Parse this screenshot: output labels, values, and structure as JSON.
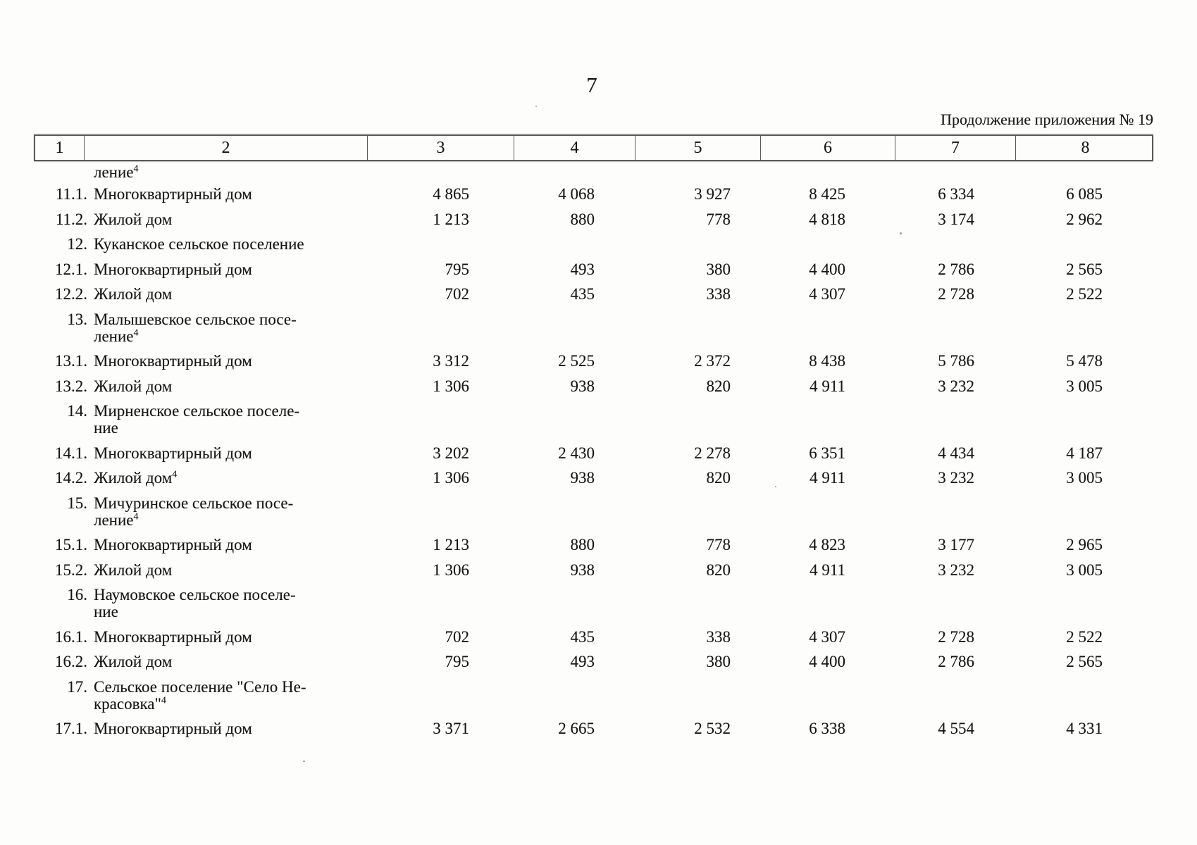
{
  "page": {
    "number": "7",
    "caption": "Продолжение приложения № 19"
  },
  "table": {
    "columns": [
      "1",
      "2",
      "3",
      "4",
      "5",
      "6",
      "7",
      "8"
    ],
    "rows": [
      {
        "type": "continuation",
        "num": "",
        "label": "ление",
        "sup": "4",
        "values": []
      },
      {
        "type": "data",
        "num": "11.1.",
        "label": "Многоквартирный дом",
        "values": [
          "4 865",
          "4 068",
          "3 927",
          "8 425",
          "6 334",
          "6 085"
        ]
      },
      {
        "type": "data",
        "num": "11.2.",
        "label": "Жилой дом",
        "values": [
          "1 213",
          "880",
          "778",
          "4 818",
          "3 174",
          "2 962"
        ]
      },
      {
        "type": "section",
        "num": "12.",
        "label": "Куканское сельское поселение",
        "values": []
      },
      {
        "type": "data",
        "num": "12.1.",
        "label": "Многоквартирный дом",
        "values": [
          "795",
          "493",
          "380",
          "4 400",
          "2 786",
          "2 565"
        ]
      },
      {
        "type": "data",
        "num": "12.2.",
        "label": "Жилой дом",
        "values": [
          "702",
          "435",
          "338",
          "4 307",
          "2 728",
          "2 522"
        ]
      },
      {
        "type": "section2",
        "num": "13.",
        "label": "Малышевское сельское посе-",
        "label2": "ление",
        "sup2": "4",
        "values": []
      },
      {
        "type": "data",
        "num": "13.1.",
        "label": "Многоквартирный дом",
        "values": [
          "3 312",
          "2 525",
          "2 372",
          "8 438",
          "5 786",
          "5 478"
        ]
      },
      {
        "type": "data",
        "num": "13.2.",
        "label": "Жилой дом",
        "values": [
          "1 306",
          "938",
          "820",
          "4 911",
          "3 232",
          "3 005"
        ]
      },
      {
        "type": "section2",
        "num": "14.",
        "label": "Мирненское сельское поселе-",
        "label2": "ние",
        "values": []
      },
      {
        "type": "data",
        "num": "14.1.",
        "label": "Многоквартирный дом",
        "values": [
          "3 202",
          "2 430",
          "2 278",
          "6 351",
          "4 434",
          "4 187"
        ]
      },
      {
        "type": "data",
        "num": "14.2.",
        "label": "Жилой дом",
        "sup": "4",
        "values": [
          "1 306",
          "938",
          "820",
          "4 911",
          "3 232",
          "3 005"
        ]
      },
      {
        "type": "section2",
        "num": "15.",
        "label": "Мичуринское сельское посе-",
        "label2": "ление",
        "sup2": "4",
        "values": []
      },
      {
        "type": "data",
        "num": "15.1.",
        "label": "Многоквартирный дом",
        "values": [
          "1 213",
          "880",
          "778",
          "4 823",
          "3 177",
          "2 965"
        ]
      },
      {
        "type": "data",
        "num": "15.2.",
        "label": "Жилой дом",
        "values": [
          "1 306",
          "938",
          "820",
          "4 911",
          "3 232",
          "3 005"
        ]
      },
      {
        "type": "section2",
        "num": "16.",
        "label": "Наумовское сельское поселе-",
        "label2": "ние",
        "values": []
      },
      {
        "type": "data",
        "num": "16.1.",
        "label": "Многоквартирный дом",
        "values": [
          "702",
          "435",
          "338",
          "4 307",
          "2 728",
          "2 522"
        ]
      },
      {
        "type": "data",
        "num": "16.2.",
        "label": "Жилой дом",
        "values": [
          "795",
          "493",
          "380",
          "4 400",
          "2 786",
          "2 565"
        ]
      },
      {
        "type": "section2",
        "num": "17.",
        "label": "Сельское поселение \"Село Не-",
        "label2": "красовка\"",
        "sup2": "4",
        "values": []
      },
      {
        "type": "data",
        "num": "17.1.",
        "label": "Многоквартирный дом",
        "values": [
          "3 371",
          "2 665",
          "2 532",
          "6 338",
          "4 554",
          "4 331"
        ]
      }
    ]
  }
}
